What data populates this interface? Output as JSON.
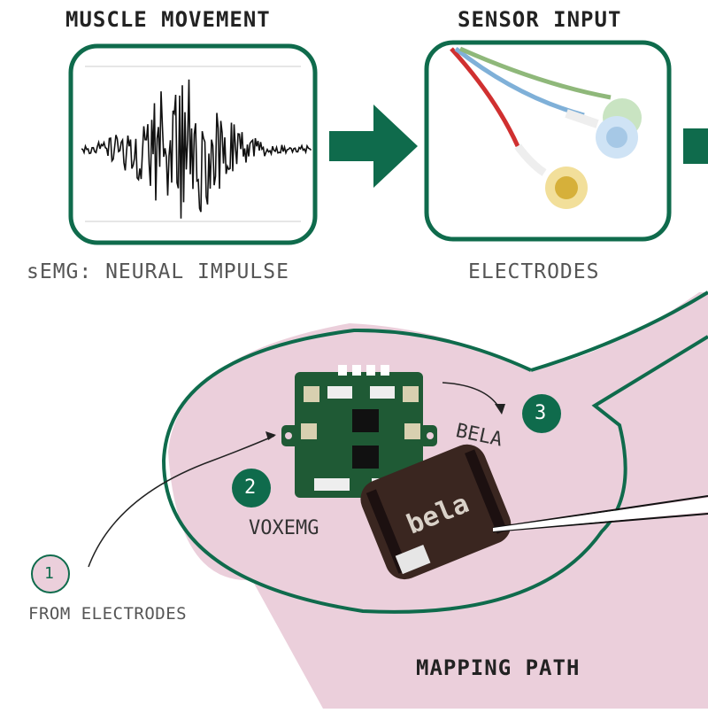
{
  "colors": {
    "green": "#0f6b4c",
    "pink": "#ebcfdb",
    "pink_stroke": "#0f6b4c",
    "text": "#222222",
    "grey_text": "#555555",
    "pcb_green": "#1f5a35",
    "bela_board": "#3a2620"
  },
  "stages": {
    "muscle": {
      "title": "MUSCLE MOVEMENT",
      "caption": "sEMG: NEURAL IMPULSE"
    },
    "sensor": {
      "title": "SENSOR INPUT",
      "caption": "ELECTRODES"
    }
  },
  "mapping": {
    "title": "MAPPING PATH",
    "steps": [
      {
        "number": "1",
        "label": "FROM ELECTRODES"
      },
      {
        "number": "2",
        "label": "VOXEMG"
      },
      {
        "number": "3",
        "label": "BELA"
      }
    ],
    "bela_logo_text": "bela"
  },
  "icons": [
    "arrow-right-icon",
    "semg-waveform-icon",
    "electrodes-icon",
    "voxemg-board-icon",
    "bela-board-icon"
  ]
}
